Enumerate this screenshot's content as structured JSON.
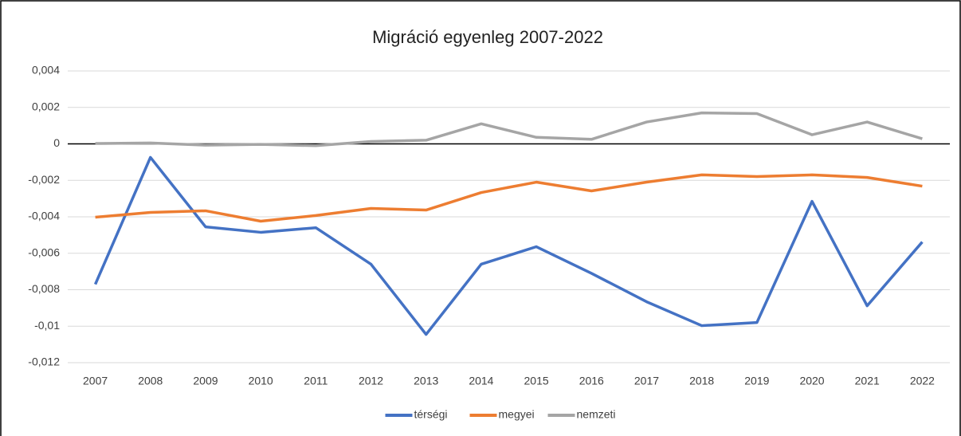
{
  "chart_data": {
    "type": "line",
    "title": "Migráció egyenleg 2007-2022",
    "categories": [
      "2007",
      "2008",
      "2009",
      "2010",
      "2011",
      "2012",
      "2013",
      "2014",
      "2015",
      "2016",
      "2017",
      "2018",
      "2019",
      "2020",
      "2021",
      "2022"
    ],
    "series": [
      {
        "name": "térségi",
        "color": "#4472c4",
        "values": [
          -0.0077,
          -0.00074,
          -0.00455,
          -0.00485,
          -0.0046,
          -0.0066,
          -0.01045,
          -0.0066,
          -0.00564,
          -0.0071,
          -0.00866,
          -0.00997,
          -0.0098,
          -0.00315,
          -0.00888,
          -0.00538
        ]
      },
      {
        "name": "megyei",
        "color": "#ed7d31",
        "values": [
          -0.00402,
          -0.00376,
          -0.00367,
          -0.00424,
          -0.00393,
          -0.00354,
          -0.00363,
          -0.00267,
          -0.0021,
          -0.00258,
          -0.0021,
          -0.0017,
          -0.00179,
          -0.0017,
          -0.00184,
          -0.00232
        ]
      },
      {
        "name": "nemzeti",
        "color": "#a5a5a5",
        "values": [
          2e-05,
          5e-05,
          -7e-05,
          -3e-05,
          -0.0001,
          0.00013,
          0.0002,
          0.0011,
          0.00036,
          0.00025,
          0.0012,
          0.0017,
          0.00166,
          0.0005,
          0.0012,
          0.00028
        ]
      }
    ],
    "ylim": [
      -0.012,
      0.004
    ],
    "yticks": [
      {
        "value": 0.004,
        "label": "0,004"
      },
      {
        "value": 0.002,
        "label": "0,002"
      },
      0,
      {
        "value": -0.002,
        "label": "-0,002"
      },
      {
        "value": -0.004,
        "label": "-0,004"
      },
      {
        "value": -0.006,
        "label": "-0,006"
      },
      {
        "value": -0.008,
        "label": "-0,008"
      },
      {
        "value": -0.01,
        "label": "-0,01"
      },
      {
        "value": -0.012,
        "label": "-0,012"
      }
    ],
    "grid": true,
    "legend": "bottom"
  }
}
